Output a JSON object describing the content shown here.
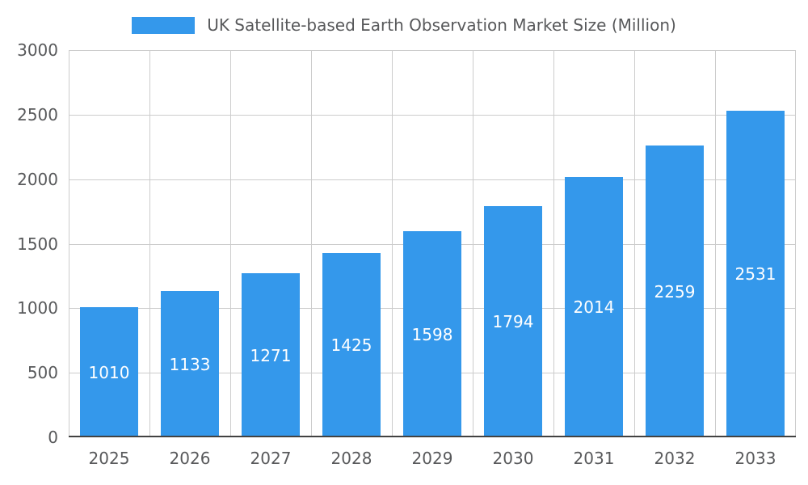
{
  "chart_data": {
    "type": "bar",
    "title": "UK Satellite-based Earth Observation Market Size (Million)",
    "categories": [
      "2025",
      "2026",
      "2027",
      "2028",
      "2029",
      "2030",
      "2031",
      "2032",
      "2033"
    ],
    "values": [
      1010,
      1133,
      1271,
      1425,
      1598,
      1794,
      2014,
      2259,
      2531
    ],
    "xlabel": "",
    "ylabel": "",
    "ylim": [
      0,
      3000
    ],
    "ytick_step": 500,
    "ytick_labels": [
      "0",
      "500",
      "1000",
      "1500",
      "2000",
      "2500",
      "3000"
    ],
    "grid": true,
    "legend_position": "top",
    "bar_color": "#3498eb",
    "value_label_color": "#ffffff",
    "gridline_color": "#cccccc",
    "axis_line_color": "#424242",
    "text_color": "#58595b"
  }
}
